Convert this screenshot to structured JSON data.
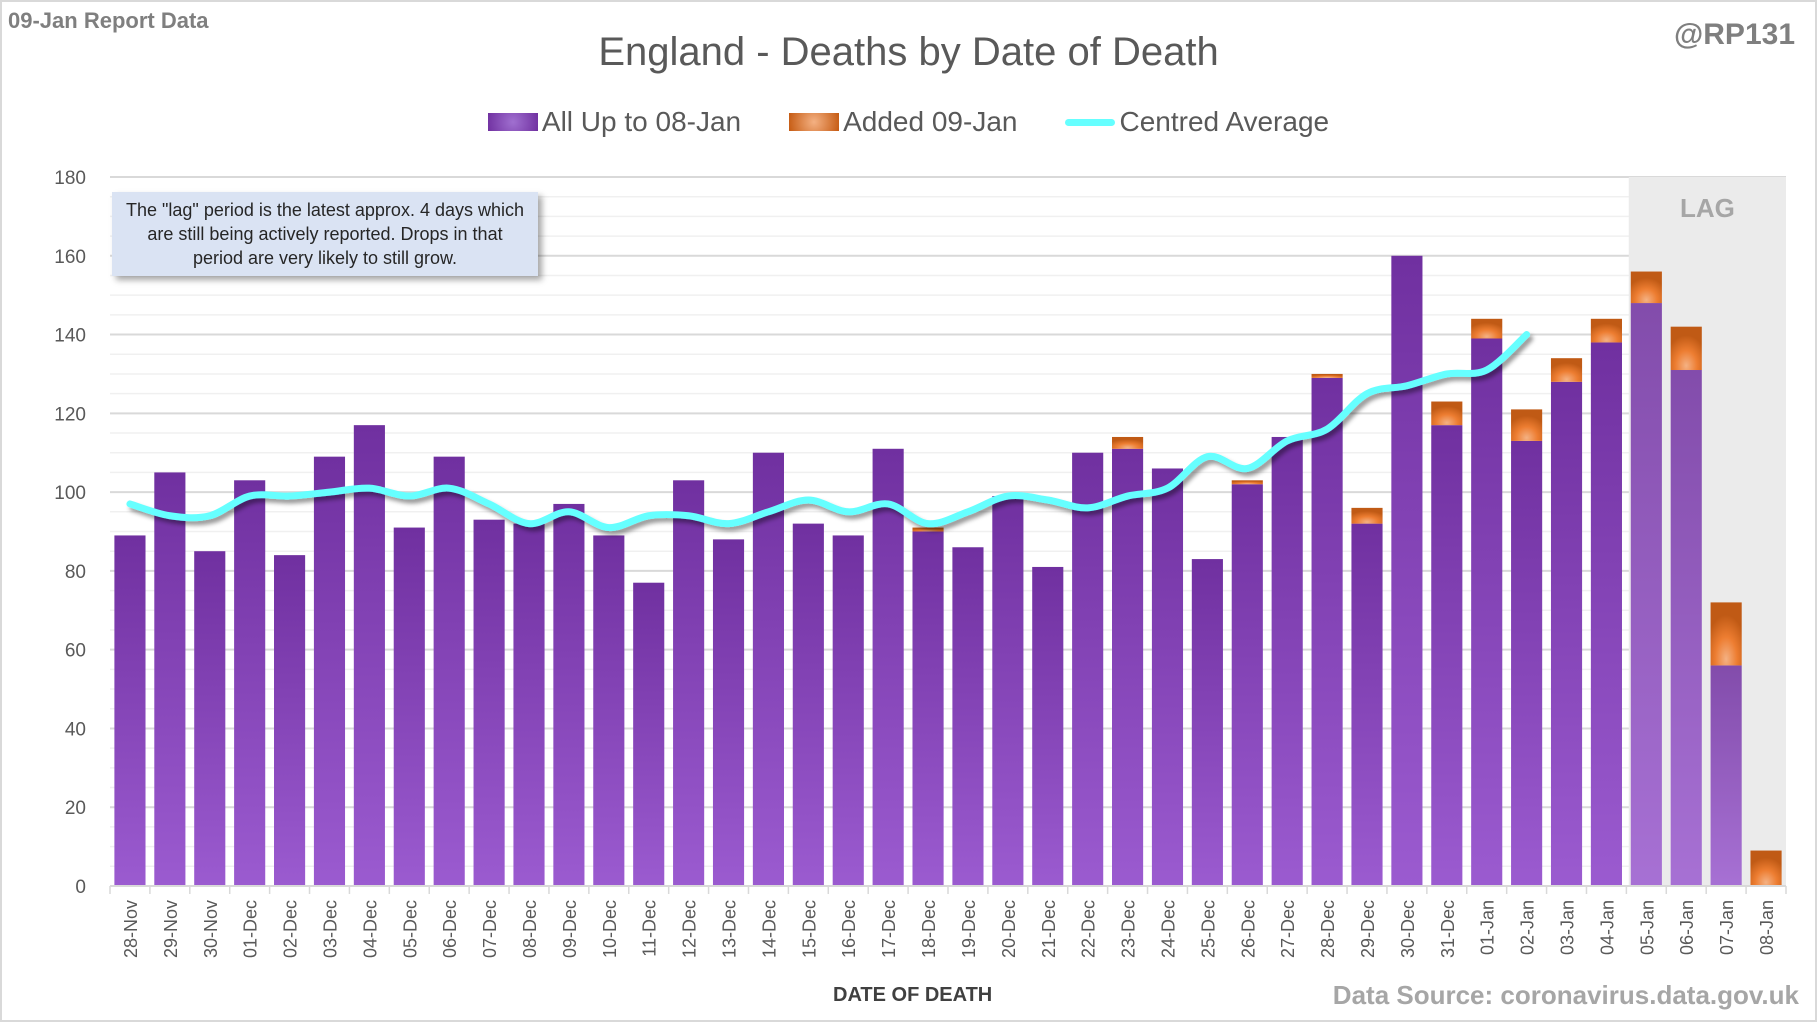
{
  "header": {
    "report_label": "09-Jan Report Data",
    "handle": "@RP131"
  },
  "footer": {
    "source": "Data Source: coronavirus.data.gov.uk"
  },
  "colors": {
    "base": "#7030a0",
    "added": "#ed7d31",
    "average": "#66ffff",
    "lag_shade": "#ebebeb"
  },
  "chart_data": {
    "type": "bar",
    "stacked": true,
    "title": "England - Deaths by Date of Death",
    "xlabel": "DATE OF DEATH",
    "ylabel": "",
    "ylim": [
      0,
      180
    ],
    "yticks": [
      0,
      20,
      40,
      60,
      80,
      100,
      120,
      140,
      160,
      180
    ],
    "grid": true,
    "legend_position": "top",
    "lag_label": "LAG",
    "lag_categories": [
      "05-Jan",
      "06-Jan",
      "07-Jan",
      "08-Jan"
    ],
    "annotation": "The \"lag\" period is the latest approx. 4 days which are still being actively reported.  Drops in that period are very likely to still grow.",
    "categories": [
      "28-Nov",
      "29-Nov",
      "30-Nov",
      "01-Dec",
      "02-Dec",
      "03-Dec",
      "04-Dec",
      "05-Dec",
      "06-Dec",
      "07-Dec",
      "08-Dec",
      "09-Dec",
      "10-Dec",
      "11-Dec",
      "12-Dec",
      "13-Dec",
      "14-Dec",
      "15-Dec",
      "16-Dec",
      "17-Dec",
      "18-Dec",
      "19-Dec",
      "20-Dec",
      "21-Dec",
      "22-Dec",
      "23-Dec",
      "24-Dec",
      "25-Dec",
      "26-Dec",
      "27-Dec",
      "28-Dec",
      "29-Dec",
      "30-Dec",
      "31-Dec",
      "01-Jan",
      "02-Jan",
      "03-Jan",
      "04-Jan",
      "05-Jan",
      "06-Jan",
      "07-Jan",
      "08-Jan"
    ],
    "series": [
      {
        "name": "All Up to 08-Jan",
        "kind": "bar",
        "values": [
          89,
          105,
          85,
          103,
          84,
          109,
          117,
          91,
          109,
          93,
          92,
          97,
          89,
          77,
          103,
          88,
          110,
          92,
          89,
          111,
          90,
          86,
          99,
          81,
          110,
          111,
          106,
          83,
          102,
          114,
          129,
          92,
          160,
          117,
          139,
          113,
          128,
          138,
          148,
          131,
          56,
          0
        ]
      },
      {
        "name": "Added 09-Jan",
        "kind": "bar",
        "values": [
          0,
          0,
          0,
          0,
          0,
          0,
          0,
          0,
          0,
          0,
          0,
          0,
          0,
          0,
          0,
          0,
          0,
          0,
          0,
          0,
          1,
          0,
          0,
          0,
          0,
          3,
          0,
          0,
          1,
          0,
          1,
          4,
          0,
          6,
          5,
          8,
          6,
          6,
          8,
          11,
          16,
          9
        ]
      },
      {
        "name": "Centred Average",
        "kind": "line",
        "values": [
          97,
          94,
          94,
          99,
          99,
          100,
          101,
          99,
          101,
          97,
          92,
          95,
          91,
          94,
          94,
          92,
          95,
          98,
          95,
          97,
          92,
          95,
          99,
          98,
          96,
          99,
          101,
          109,
          106,
          113,
          116,
          125,
          127,
          130,
          131,
          140,
          null,
          null,
          null,
          null,
          null,
          null
        ]
      }
    ]
  }
}
